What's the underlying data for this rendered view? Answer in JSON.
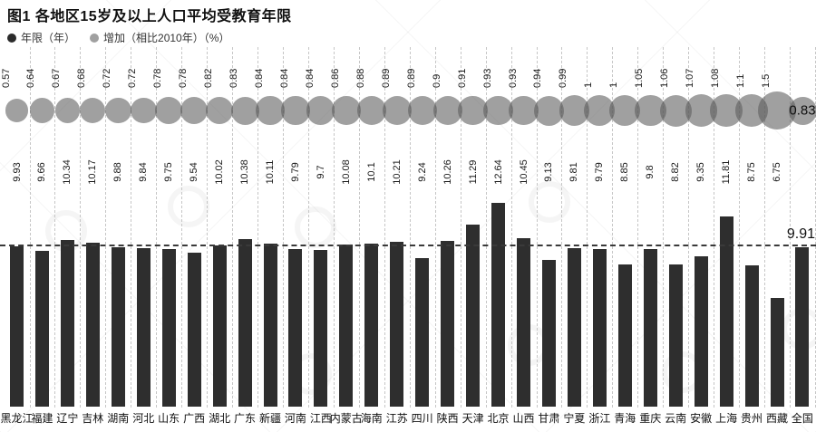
{
  "title": "图1 各地区15岁及以上人口平均受教育年限",
  "legend": {
    "items": [
      {
        "label": "年限（年）",
        "color": "#2b2b2b"
      },
      {
        "label": "增加（相比2010年）（%）",
        "color": "#a0a0a0"
      }
    ]
  },
  "annotations": {
    "national_years_label": "9.91",
    "national_increase_label": "0.83"
  },
  "colors": {
    "bar": "#2e2e2e",
    "bubble": "rgba(92,92,92,0.58)",
    "grid": "#c6c6c6",
    "reference_line": "#3a3a3a",
    "text": "#1a1a1a"
  },
  "chart_data": {
    "type": "bar",
    "title": "图1 各地区15岁及以上人口平均受教育年限",
    "categories": [
      "黑龙江",
      "福建",
      "辽宁",
      "吉林",
      "湖南",
      "河北",
      "山东",
      "广西",
      "湖北",
      "广东",
      "新疆",
      "河南",
      "江西",
      "内蒙古",
      "海南",
      "江苏",
      "四川",
      "陕西",
      "天津",
      "北京",
      "山西",
      "甘肃",
      "宁夏",
      "浙江",
      "青海",
      "重庆",
      "云南",
      "安徽",
      "上海",
      "贵州",
      "西藏",
      "全国"
    ],
    "series": [
      {
        "name": "年限（年）",
        "type": "bar",
        "values": [
          9.93,
          9.66,
          10.34,
          10.17,
          9.88,
          9.84,
          9.75,
          9.54,
          10.02,
          10.38,
          10.11,
          9.79,
          9.7,
          10.08,
          10.1,
          10.21,
          9.24,
          10.26,
          11.29,
          12.64,
          10.45,
          9.13,
          9.81,
          9.79,
          8.85,
          9.8,
          8.82,
          9.35,
          11.81,
          8.75,
          6.75,
          9.91
        ]
      },
      {
        "name": "增加（相比2010年）（%）",
        "type": "bubble",
        "values": [
          0.57,
          0.64,
          0.67,
          0.68,
          0.72,
          0.72,
          0.78,
          0.78,
          0.82,
          0.83,
          0.84,
          0.84,
          0.84,
          0.86,
          0.88,
          0.89,
          0.89,
          0.9,
          0.91,
          0.93,
          0.93,
          0.94,
          0.99,
          1,
          1,
          1.05,
          1.06,
          1.07,
          1.08,
          1.1,
          1.5,
          0.83
        ]
      }
    ],
    "reference_line": {
      "value": 9.91,
      "label": "9.91",
      "series": "年限（年）"
    },
    "ylim": [
      0,
      13
    ],
    "grid": "vertical-dashed",
    "legend_position": "top-left",
    "value_label_rotation": -90,
    "national_column": "全国"
  }
}
